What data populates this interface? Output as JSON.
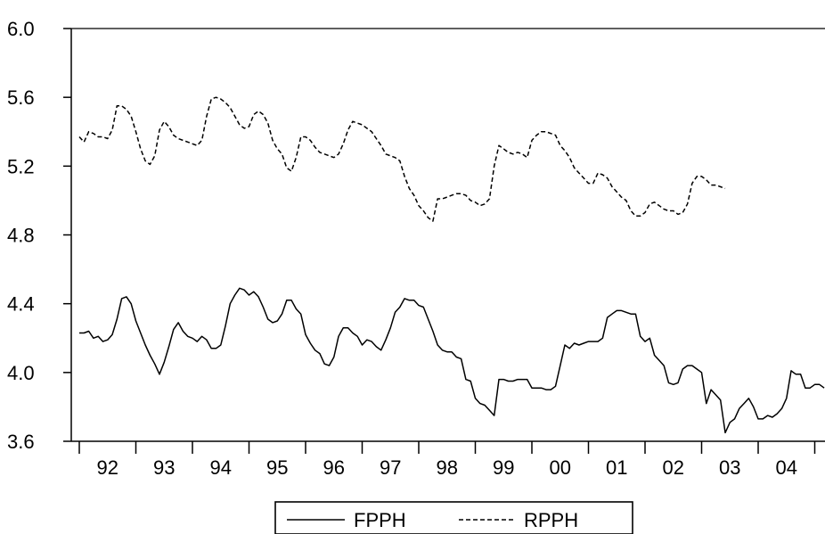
{
  "chart_data": {
    "type": "line",
    "title": "",
    "xlabel": "",
    "ylabel": "",
    "ylim": [
      3.6,
      6.0
    ],
    "yticks": [
      "6.0",
      "5.6",
      "5.2",
      "4.8",
      "4.4",
      "4.0",
      "3.6"
    ],
    "xticks": [
      "92",
      "93",
      "94",
      "95",
      "96",
      "97",
      "98",
      "99",
      "00",
      "01",
      "02",
      "03",
      "04"
    ],
    "x_start": "1992-01",
    "frequency": "monthly",
    "legend_position": "bottom-center",
    "grid": false,
    "series": [
      {
        "name": "FPPH",
        "line_style": "solid",
        "color": "#000000",
        "values": [
          4.23,
          4.23,
          4.24,
          4.2,
          4.21,
          4.18,
          4.19,
          4.22,
          4.31,
          4.43,
          4.44,
          4.4,
          4.3,
          4.23,
          4.16,
          4.1,
          4.05,
          3.99,
          4.06,
          4.15,
          4.25,
          4.29,
          4.24,
          4.21,
          4.2,
          4.18,
          4.21,
          4.19,
          4.14,
          4.14,
          4.16,
          4.27,
          4.4,
          4.45,
          4.49,
          4.48,
          4.45,
          4.47,
          4.44,
          4.38,
          4.31,
          4.29,
          4.3,
          4.34,
          4.42,
          4.42,
          4.37,
          4.34,
          4.22,
          4.17,
          4.13,
          4.11,
          4.05,
          4.04,
          4.09,
          4.21,
          4.26,
          4.26,
          4.23,
          4.21,
          4.16,
          4.19,
          4.18,
          4.15,
          4.13,
          4.19,
          4.26,
          4.35,
          4.38,
          4.43,
          4.42,
          4.42,
          4.39,
          4.38,
          4.31,
          4.24,
          4.16,
          4.13,
          4.12,
          4.12,
          4.09,
          4.08,
          3.96,
          3.95,
          3.85,
          3.82,
          3.81,
          3.78,
          3.75,
          3.96,
          3.96,
          3.95,
          3.95,
          3.96,
          3.96,
          3.96,
          3.91,
          3.91,
          3.91,
          3.9,
          3.9,
          3.92,
          4.04,
          4.16,
          4.14,
          4.17,
          4.16,
          4.17,
          4.18,
          4.18,
          4.18,
          4.2,
          4.32,
          4.34,
          4.36,
          4.36,
          4.35,
          4.34,
          4.34,
          4.21,
          4.18,
          4.2,
          4.1,
          4.07,
          4.04,
          3.94,
          3.93,
          3.94,
          4.02,
          4.04,
          4.04,
          4.02,
          4.0,
          3.82,
          3.9,
          3.87,
          3.84,
          3.65,
          3.71,
          3.73,
          3.79,
          3.82,
          3.85,
          3.8,
          3.73,
          3.73,
          3.75,
          3.74,
          3.76,
          3.79,
          3.85,
          4.01,
          3.99,
          3.99,
          3.91,
          3.91,
          3.93,
          3.93,
          3.91
        ]
      },
      {
        "name": "RPPH",
        "line_style": "dashed",
        "color": "#000000",
        "values": [
          5.37,
          5.34,
          5.4,
          5.39,
          5.37,
          5.37,
          5.36,
          5.41,
          5.55,
          5.55,
          5.53,
          5.49,
          5.4,
          5.3,
          5.23,
          5.21,
          5.26,
          5.41,
          5.46,
          5.43,
          5.38,
          5.36,
          5.35,
          5.34,
          5.33,
          5.32,
          5.35,
          5.49,
          5.59,
          5.6,
          5.59,
          5.57,
          5.54,
          5.49,
          5.44,
          5.42,
          5.43,
          5.5,
          5.52,
          5.5,
          5.45,
          5.35,
          5.3,
          5.27,
          5.19,
          5.17,
          5.25,
          5.37,
          5.37,
          5.35,
          5.31,
          5.28,
          5.27,
          5.26,
          5.25,
          5.27,
          5.33,
          5.41,
          5.46,
          5.45,
          5.44,
          5.42,
          5.4,
          5.36,
          5.32,
          5.27,
          5.26,
          5.25,
          5.23,
          5.14,
          5.07,
          5.03,
          4.97,
          4.94,
          4.9,
          4.88,
          5.01,
          5.01,
          5.02,
          5.03,
          5.04,
          5.04,
          5.03,
          5.0,
          4.99,
          4.97,
          4.98,
          5.01,
          5.2,
          5.32,
          5.3,
          5.28,
          5.27,
          5.28,
          5.27,
          5.25,
          5.35,
          5.38,
          5.4,
          5.4,
          5.39,
          5.38,
          5.32,
          5.29,
          5.25,
          5.19,
          5.16,
          5.13,
          5.1,
          5.1,
          5.16,
          5.15,
          5.13,
          5.08,
          5.05,
          5.02,
          5.0,
          4.94,
          4.91,
          4.91,
          4.93,
          4.98,
          4.99,
          4.97,
          4.95,
          4.94,
          4.94,
          4.92,
          4.93,
          4.98,
          5.1,
          5.14,
          5.14,
          5.12,
          5.09,
          5.09,
          5.08,
          5.07
        ]
      }
    ]
  },
  "legend": {
    "fpph": "FPPH",
    "rpph": "RPPH"
  }
}
